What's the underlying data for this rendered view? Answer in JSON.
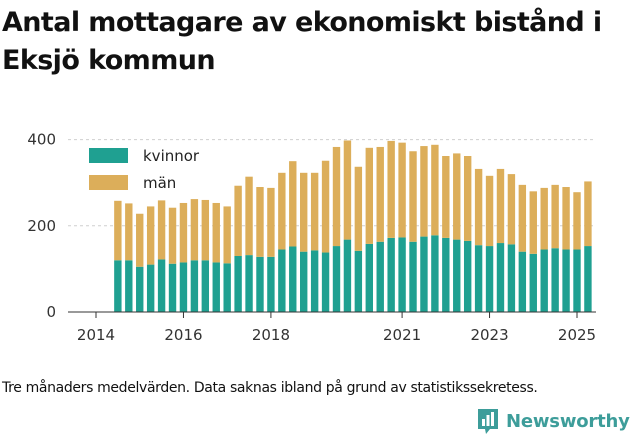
{
  "title": "Antal mottagare av ekonomiskt bistånd i Eksjö kommun",
  "caption": "Tre månaders medelvärden. Data saknas ibland på grund av statistikssekretess.",
  "brand": {
    "name": "Newsworthy",
    "icon": "newsworthy-chart-logo-icon",
    "color": "#3d9d9a"
  },
  "chart_data": {
    "type": "bar",
    "stacked": true,
    "title": "",
    "xlabel": "",
    "ylabel": "",
    "ylim": [
      0,
      420
    ],
    "yticks": [
      0,
      200,
      400
    ],
    "xticks": [
      "2014",
      "2016",
      "2018",
      "2021",
      "2023",
      "2025"
    ],
    "grid": "horizontal",
    "legend_position": "top-left",
    "x": [
      "2014-07",
      "2014-10",
      "2015-01",
      "2015-04",
      "2015-07",
      "2015-10",
      "2016-01",
      "2016-04",
      "2016-07",
      "2016-10",
      "2017-01",
      "2017-04",
      "2017-07",
      "2017-10",
      "2018-01",
      "2018-04",
      "2018-07",
      "2018-10",
      "2019-01",
      "2019-04",
      "2019-07",
      "2019-10",
      "2020-01",
      "2020-04",
      "2020-07",
      "2020-10",
      "2021-01",
      "2021-04",
      "2021-07",
      "2021-10",
      "2022-01",
      "2022-04",
      "2022-07",
      "2022-10",
      "2023-01",
      "2023-04",
      "2023-07",
      "2023-10",
      "2024-01",
      "2024-04",
      "2024-07",
      "2024-10",
      "2025-01",
      "2025-04"
    ],
    "series": [
      {
        "name": "kvinnor",
        "color": "#1fa091",
        "values": [
          120,
          120,
          105,
          110,
          122,
          112,
          115,
          120,
          120,
          115,
          113,
          130,
          132,
          128,
          128,
          145,
          152,
          140,
          143,
          138,
          153,
          168,
          142,
          158,
          163,
          172,
          173,
          163,
          175,
          178,
          172,
          168,
          165,
          155,
          153,
          160,
          157,
          140,
          135,
          145,
          148,
          145,
          145,
          153
        ]
      },
      {
        "name": "män",
        "color": "#dcae5a",
        "values": [
          138,
          132,
          123,
          135,
          137,
          130,
          138,
          142,
          140,
          138,
          132,
          163,
          182,
          162,
          160,
          178,
          198,
          183,
          180,
          213,
          230,
          230,
          195,
          223,
          220,
          225,
          220,
          210,
          210,
          210,
          190,
          200,
          197,
          177,
          163,
          172,
          163,
          155,
          145,
          143,
          147,
          145,
          133,
          150
        ]
      }
    ]
  }
}
